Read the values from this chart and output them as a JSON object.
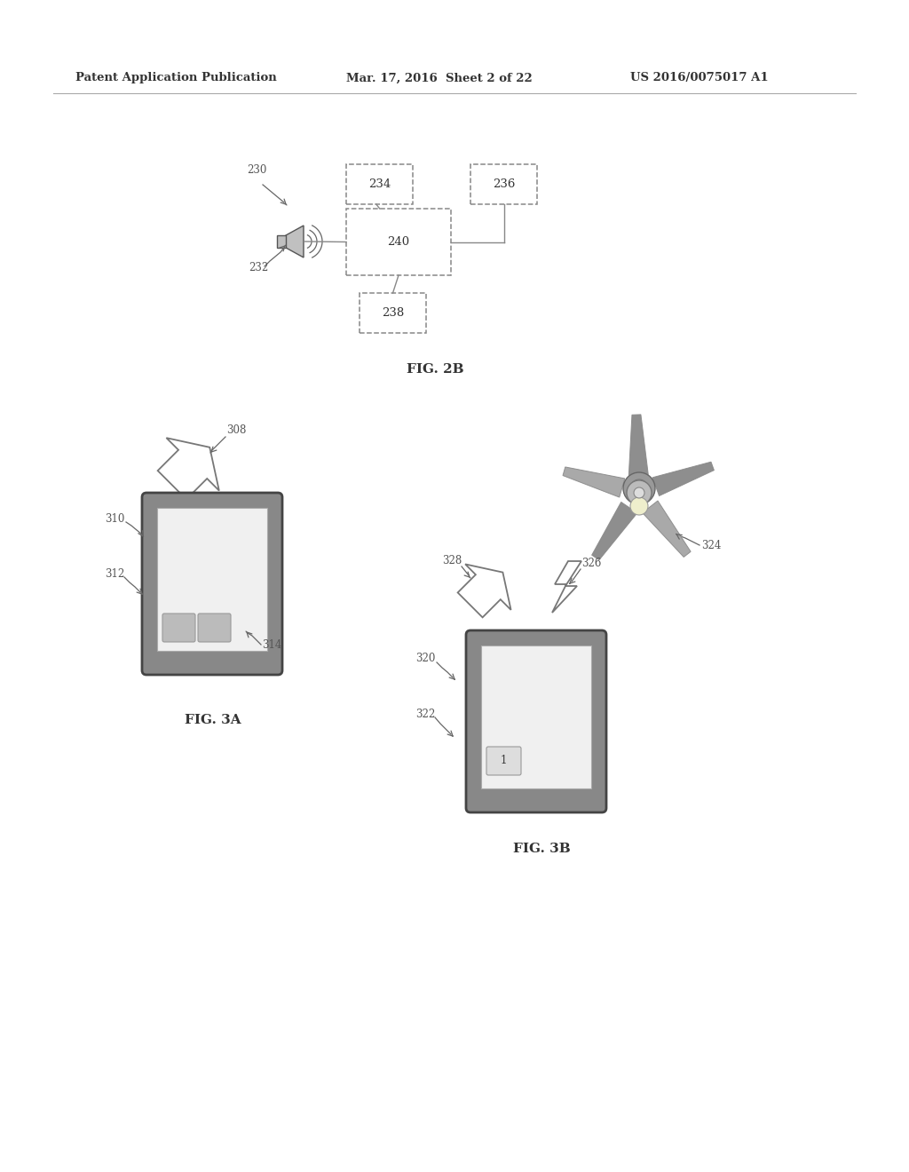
{
  "bg_color": "#ffffff",
  "header_left": "Patent Application Publication",
  "header_mid": "Mar. 17, 2016  Sheet 2 of 22",
  "header_right": "US 2016/0075017 A1",
  "fig2b_label": "FIG. 2B",
  "fig3a_label": "FIG. 3A",
  "fig3b_label": "FIG. 3B",
  "text_color": "#333333",
  "label_color": "#555555",
  "box_edge_color": "#888888",
  "line_color": "#888888"
}
